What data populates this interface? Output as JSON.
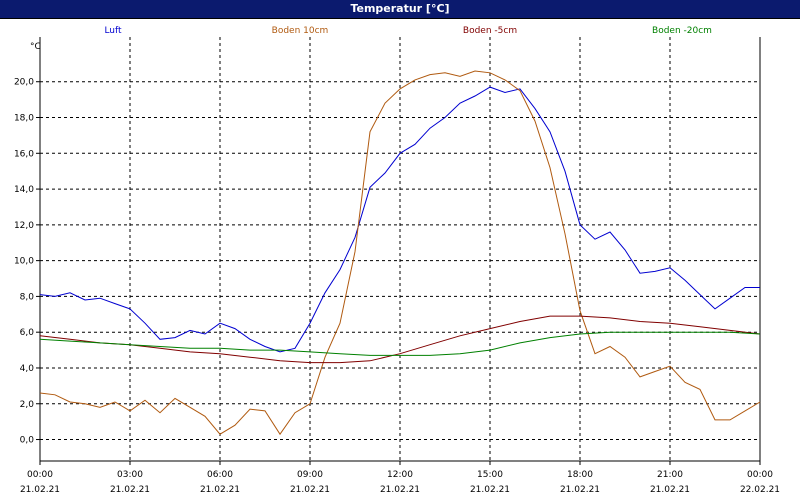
{
  "window": {
    "title": "Temperatur [°C]"
  },
  "chart_data": {
    "type": "line",
    "title": "Temperatur [°C]",
    "ylabel": "°C",
    "xlabel": "",
    "ylim": [
      -1.2,
      22.5
    ],
    "y_ticks": [
      "0,0",
      "2,0",
      "4,0",
      "6,0",
      "8,0",
      "10,0",
      "12,0",
      "14,0",
      "16,0",
      "18,0",
      "20,0"
    ],
    "y_tick_values": [
      0,
      2,
      4,
      6,
      8,
      10,
      12,
      14,
      16,
      18,
      20
    ],
    "x_range": [
      0,
      24
    ],
    "x_tick_values": [
      0,
      3,
      6,
      9,
      12,
      15,
      18,
      21,
      24
    ],
    "x_tick_times": [
      "00:00",
      "03:00",
      "06:00",
      "09:00",
      "12:00",
      "15:00",
      "18:00",
      "21:00",
      "00:00"
    ],
    "x_tick_dates": [
      "21.02.21",
      "21.02.21",
      "21.02.21",
      "21.02.21",
      "21.02.21",
      "21.02.21",
      "21.02.21",
      "21.02.21",
      "22.02.21"
    ],
    "grid": true,
    "legend_position": "top",
    "series": [
      {
        "name": "Luft",
        "color": "#0000d0",
        "x": [
          0,
          0.5,
          1,
          1.5,
          2,
          2.5,
          3,
          3.5,
          4,
          4.5,
          5,
          5.5,
          6,
          6.5,
          7,
          7.5,
          8,
          8.5,
          9,
          9.5,
          10,
          10.5,
          11,
          11.5,
          12,
          12.5,
          13,
          13.5,
          14,
          14.5,
          15,
          15.5,
          16,
          16.5,
          17,
          17.5,
          18,
          18.5,
          19,
          19.5,
          20,
          20.5,
          21,
          21.5,
          22,
          22.5,
          23,
          23.5,
          24
        ],
        "values": [
          8.1,
          8,
          8.2,
          7.8,
          7.9,
          7.6,
          7.3,
          6.5,
          5.6,
          5.7,
          6.1,
          5.9,
          6.5,
          6.2,
          5.6,
          5.2,
          4.9,
          5.1,
          6.5,
          8.2,
          9.5,
          11.3,
          14.1,
          14.9,
          16,
          16.5,
          17.4,
          18,
          18.8,
          19.2,
          19.7,
          19.4,
          19.6,
          18.5,
          17.2,
          15,
          12,
          11.2,
          11.6,
          10.6,
          9.3,
          9.4,
          9.6,
          8.9,
          8.1,
          7.3,
          7.9,
          8.5,
          8.5
        ]
      },
      {
        "name": "Boden 10cm",
        "color": "#b05a10",
        "x": [
          0,
          0.5,
          1,
          1.5,
          2,
          2.5,
          3,
          3.5,
          4,
          4.5,
          5,
          5.5,
          6,
          6.5,
          7,
          7.5,
          8,
          8.5,
          9,
          9.5,
          10,
          10.5,
          11,
          11.5,
          12,
          12.5,
          13,
          13.5,
          14,
          14.5,
          15,
          15.5,
          16,
          16.5,
          17,
          17.5,
          18,
          18.5,
          19,
          19.5,
          20,
          20.5,
          21,
          21.5,
          22,
          22.5,
          23,
          23.5,
          24
        ],
        "values": [
          2.6,
          2.5,
          2.1,
          2,
          1.8,
          2.1,
          1.6,
          2.2,
          1.5,
          2.3,
          1.8,
          1.3,
          0.3,
          0.8,
          1.7,
          1.6,
          0.3,
          1.5,
          2,
          4.6,
          6.5,
          10.5,
          17.2,
          18.8,
          19.6,
          20.1,
          20.4,
          20.5,
          20.3,
          20.6,
          20.5,
          20.1,
          19.5,
          17.8,
          15.2,
          11.5,
          7.2,
          4.8,
          5.2,
          4.6,
          3.5,
          3.8,
          4.1,
          3.2,
          2.8,
          1.1,
          1.1,
          1.6,
          2.1
        ]
      },
      {
        "name": "Boden -5cm",
        "color": "#800000",
        "x": [
          0,
          1,
          2,
          3,
          4,
          5,
          6,
          7,
          8,
          9,
          10,
          11,
          12,
          13,
          14,
          15,
          16,
          17,
          18,
          19,
          20,
          21,
          22,
          23,
          24
        ],
        "values": [
          5.8,
          5.6,
          5.4,
          5.3,
          5.1,
          4.9,
          4.8,
          4.6,
          4.4,
          4.3,
          4.3,
          4.4,
          4.8,
          5.3,
          5.8,
          6.2,
          6.6,
          6.9,
          6.9,
          6.8,
          6.6,
          6.5,
          6.3,
          6.1,
          5.9
        ]
      },
      {
        "name": "Boden -20cm",
        "color": "#008000",
        "x": [
          0,
          1,
          2,
          3,
          4,
          5,
          6,
          7,
          8,
          9,
          10,
          11,
          12,
          13,
          14,
          15,
          16,
          17,
          18,
          19,
          20,
          21,
          22,
          23,
          24
        ],
        "values": [
          5.6,
          5.5,
          5.4,
          5.3,
          5.2,
          5.1,
          5.1,
          5,
          5,
          4.9,
          4.8,
          4.7,
          4.7,
          4.7,
          4.8,
          5,
          5.4,
          5.7,
          5.9,
          6,
          6,
          6,
          6,
          6,
          5.9
        ]
      }
    ]
  }
}
